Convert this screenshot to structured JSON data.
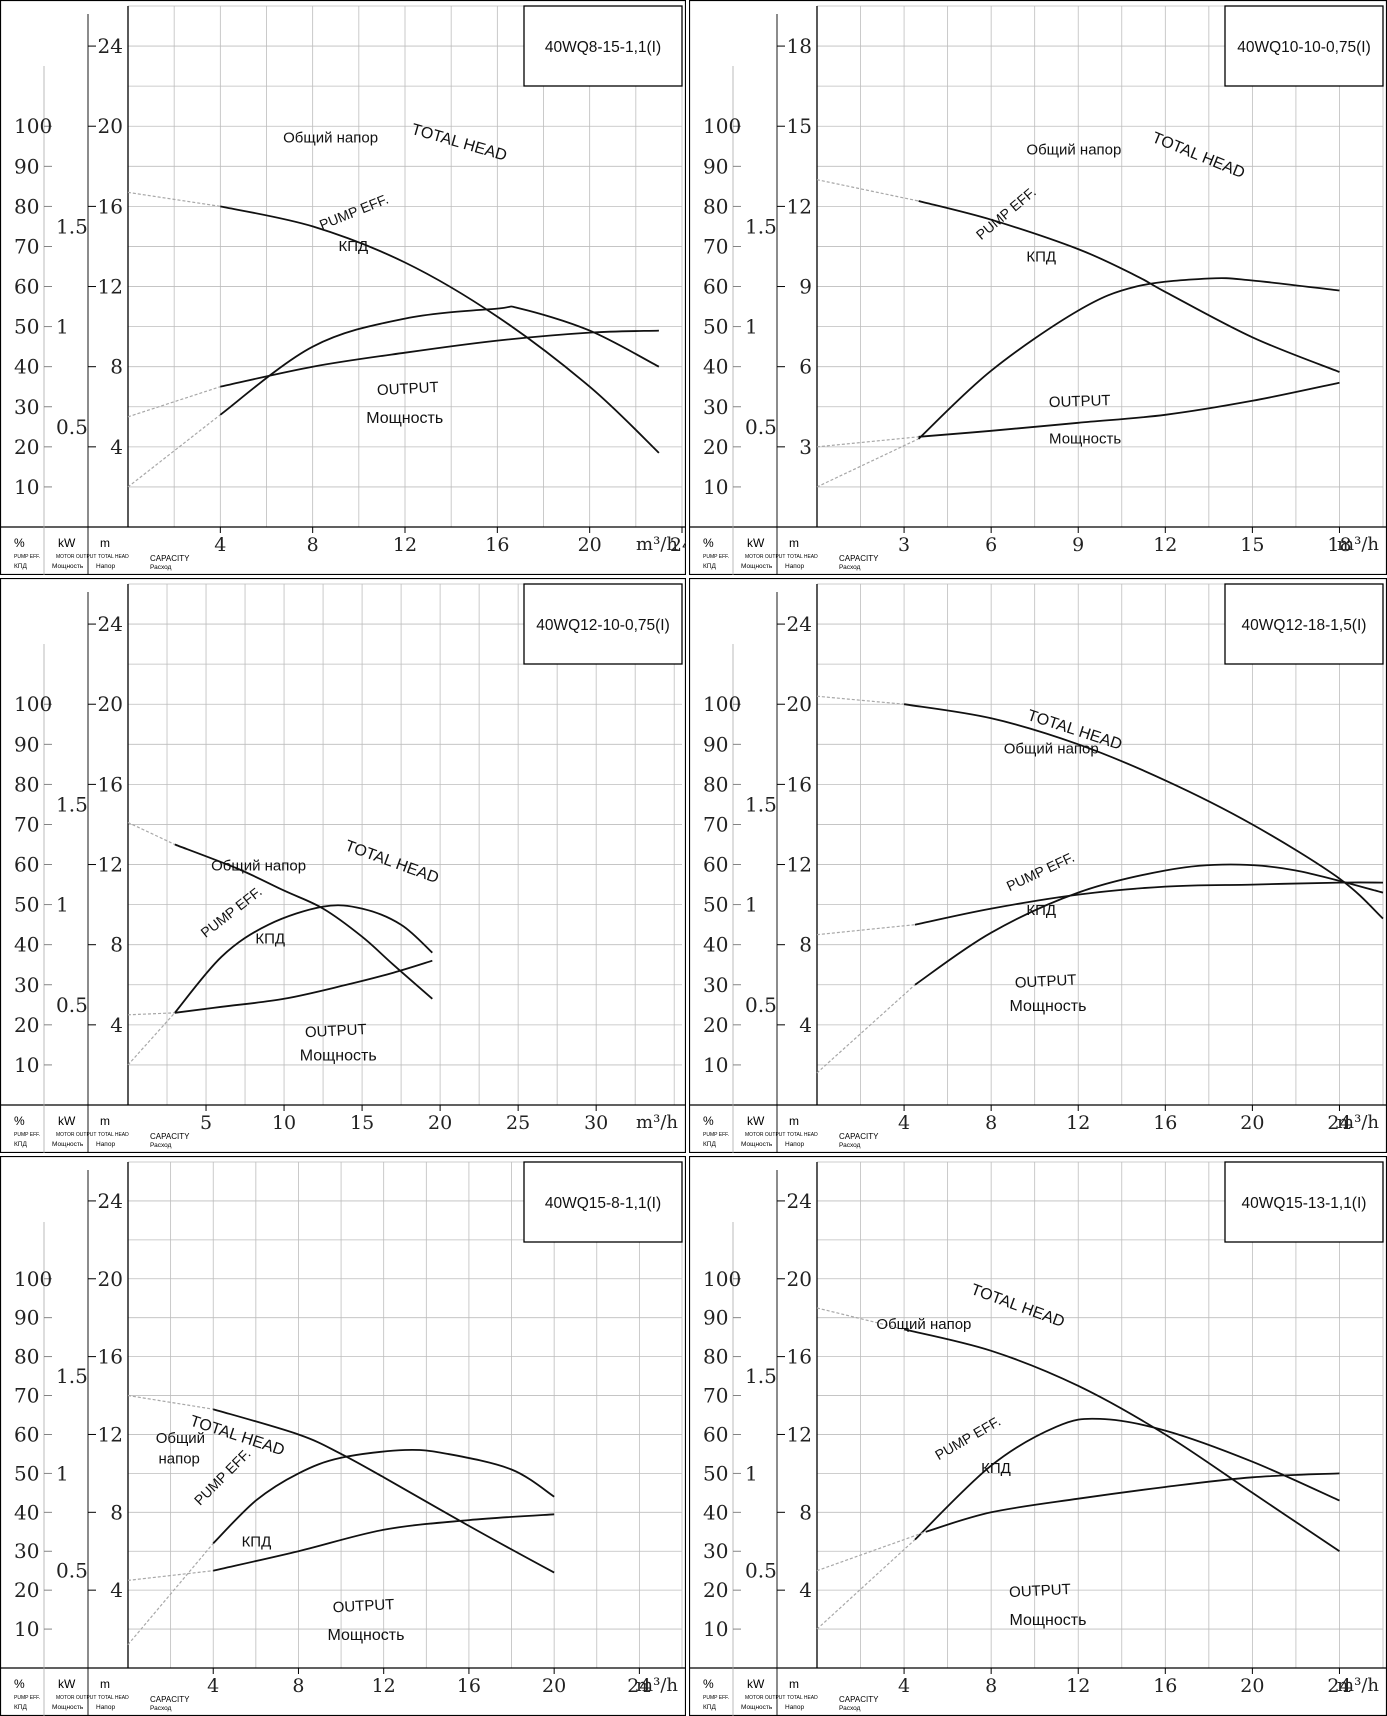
{
  "header_labels": {
    "pct": "%",
    "kw": "kW",
    "m": "m",
    "pump_eff": "PUMP EFF.",
    "kpd": "КПД",
    "motor_output": "MOTOR OUTPUT",
    "moshchnost": "Мощность",
    "total_head": "TOTAL HEAD",
    "napor": "Напор",
    "capacity": "CAPACITY",
    "raskhod": "Расход",
    "unit": "m³/h"
  },
  "chart_data": [
    {
      "type": "line",
      "title": "40WQ8-15-1,1(I)",
      "xlabel": "CAPACITY",
      "xlim": [
        0,
        24
      ],
      "x_ticks": [
        4,
        8,
        12,
        16,
        20,
        24
      ],
      "head_lim": [
        0,
        26
      ],
      "head_ticks": [
        4,
        8,
        12,
        16,
        20,
        24
      ],
      "eff_lim": [
        0,
        130
      ],
      "eff_ticks": [
        10,
        20,
        30,
        40,
        50,
        60,
        70,
        80,
        90,
        100
      ],
      "kw_lim": [
        0,
        2.6
      ],
      "kw_ticks": [
        "0.5",
        "1",
        "1.5"
      ],
      "series": [
        {
          "name": "TOTAL HEAD",
          "name_ru": "Общий напор",
          "axis": "head",
          "x": [
            0,
            4,
            8,
            12,
            16,
            20,
            23
          ],
          "y": [
            16.7,
            16.0,
            15.0,
            13.2,
            10.5,
            7.0,
            3.7
          ]
        },
        {
          "name": "PUMP EFF.",
          "name_ru": "КПД",
          "axis": "eff",
          "x": [
            0,
            4,
            8,
            12,
            16,
            17,
            20,
            23
          ],
          "y": [
            10,
            28,
            45,
            52,
            54.5,
            54.5,
            49,
            40
          ]
        },
        {
          "name": "OUTPUT",
          "name_ru": "Мощность",
          "axis": "kw",
          "x": [
            0,
            4,
            8,
            12,
            16,
            20,
            23
          ],
          "y": [
            0.55,
            0.7,
            0.8,
            0.87,
            0.93,
            0.97,
            0.98
          ]
        }
      ]
    },
    {
      "type": "line",
      "title": "40WQ10-10-0,75(I)",
      "xlabel": "CAPACITY",
      "xlim": [
        0,
        19.5
      ],
      "x_ticks": [
        3,
        6,
        9,
        12,
        15,
        18
      ],
      "head_lim": [
        0,
        19.5
      ],
      "head_ticks": [
        3,
        6,
        9,
        12,
        15,
        18
      ],
      "eff_lim": [
        0,
        130
      ],
      "eff_ticks": [
        10,
        20,
        30,
        40,
        50,
        60,
        70,
        80,
        90,
        100
      ],
      "kw_lim": [
        0,
        2.6
      ],
      "kw_ticks": [
        "0.5",
        "1",
        "1.5"
      ],
      "series": [
        {
          "name": "TOTAL HEAD",
          "name_ru": "Общий напор",
          "axis": "head",
          "x": [
            0,
            3.5,
            6,
            9,
            11,
            12,
            15,
            18
          ],
          "y": [
            13.0,
            12.2,
            11.5,
            10.4,
            9.4,
            8.8,
            7.1,
            5.8
          ]
        },
        {
          "name": "PUMP EFF.",
          "name_ru": "КПД",
          "axis": "eff",
          "x": [
            0,
            3.5,
            6,
            9,
            11,
            13.5,
            15,
            18
          ],
          "y": [
            10,
            22,
            39,
            54,
            60,
            62,
            61.5,
            59
          ]
        },
        {
          "name": "OUTPUT",
          "name_ru": "Мощность",
          "axis": "kw",
          "x": [
            0,
            3.5,
            6,
            9,
            12,
            15,
            18
          ],
          "y": [
            0.4,
            0.45,
            0.48,
            0.52,
            0.56,
            0.63,
            0.72
          ]
        }
      ]
    },
    {
      "type": "line",
      "title": "40WQ12-10-0,75(I)",
      "xlabel": "CAPACITY",
      "xlim": [
        0,
        35.5
      ],
      "x_ticks": [
        5,
        10,
        15,
        20,
        25,
        30
      ],
      "head_lim": [
        0,
        26
      ],
      "head_ticks": [
        4,
        8,
        12,
        16,
        20,
        24
      ],
      "eff_lim": [
        0,
        130
      ],
      "eff_ticks": [
        10,
        20,
        30,
        40,
        50,
        60,
        70,
        80,
        90,
        100
      ],
      "kw_lim": [
        0,
        2.6
      ],
      "kw_ticks": [
        "0.5",
        "1",
        "1.5"
      ],
      "series": [
        {
          "name": "TOTAL HEAD",
          "name_ru": "Общий напор",
          "axis": "head",
          "x": [
            0,
            3,
            7,
            10,
            12.5,
            15,
            17,
            19.5
          ],
          "y": [
            14.1,
            13.0,
            11.8,
            10.7,
            9.8,
            8.4,
            7.0,
            5.3
          ]
        },
        {
          "name": "PUMP EFF.",
          "name_ru": "КПД",
          "axis": "eff",
          "x": [
            0,
            3,
            6,
            9,
            12.5,
            15,
            17.5,
            19.5
          ],
          "y": [
            10,
            23,
            37,
            45,
            49.5,
            49,
            45,
            38
          ]
        },
        {
          "name": "OUTPUT",
          "name_ru": "Мощность",
          "axis": "kw",
          "x": [
            0,
            3,
            6,
            10,
            14,
            17,
            19.5
          ],
          "y": [
            0.45,
            0.46,
            0.49,
            0.53,
            0.6,
            0.66,
            0.72
          ]
        }
      ]
    },
    {
      "type": "line",
      "title": "40WQ12-18-1,5(I)",
      "xlabel": "CAPACITY",
      "xlim": [
        0,
        26
      ],
      "x_ticks": [
        4,
        8,
        12,
        16,
        20,
        24
      ],
      "head_lim": [
        0,
        26
      ],
      "head_ticks": [
        4,
        8,
        12,
        16,
        20,
        24
      ],
      "eff_lim": [
        0,
        130
      ],
      "eff_ticks": [
        10,
        20,
        30,
        40,
        50,
        60,
        70,
        80,
        90,
        100
      ],
      "kw_lim": [
        0,
        2.6
      ],
      "kw_ticks": [
        "0.5",
        "1",
        "1.5"
      ],
      "series": [
        {
          "name": "TOTAL HEAD",
          "name_ru": "Общий напор",
          "axis": "head",
          "x": [
            0,
            4,
            8,
            12,
            16,
            20,
            24,
            26
          ],
          "y": [
            20.4,
            20.0,
            19.3,
            18.0,
            16.2,
            14.0,
            11.3,
            9.3
          ]
        },
        {
          "name": "PUMP EFF.",
          "name_ru": "КПД",
          "axis": "eff",
          "x": [
            0,
            4.5,
            8,
            12,
            16,
            19,
            22,
            26
          ],
          "y": [
            8,
            30,
            43,
            53,
            58.5,
            60,
            58.5,
            53
          ]
        },
        {
          "name": "OUTPUT",
          "name_ru": "Мощность",
          "axis": "kw",
          "x": [
            0,
            4.5,
            8,
            12,
            16,
            20,
            24,
            26
          ],
          "y": [
            0.85,
            0.9,
            0.98,
            1.05,
            1.09,
            1.1,
            1.11,
            1.11
          ]
        }
      ]
    },
    {
      "type": "line",
      "title": "40WQ15-8-1,1(I)",
      "xlabel": "CAPACITY",
      "xlim": [
        0,
        26
      ],
      "x_ticks": [
        4,
        8,
        12,
        16,
        20,
        24
      ],
      "head_lim": [
        0,
        26
      ],
      "head_ticks": [
        4,
        8,
        12,
        16,
        20,
        24
      ],
      "eff_lim": [
        0,
        130
      ],
      "eff_ticks": [
        10,
        20,
        30,
        40,
        50,
        60,
        70,
        80,
        90,
        100
      ],
      "kw_lim": [
        0,
        2.6
      ],
      "kw_ticks": [
        "0.5",
        "1",
        "1.5"
      ],
      "series": [
        {
          "name": "TOTAL HEAD",
          "name_ru": "Общий напор",
          "axis": "head",
          "x": [
            0,
            4,
            8,
            10,
            12,
            16,
            20
          ],
          "y": [
            14.0,
            13.3,
            12.0,
            11.0,
            9.8,
            7.3,
            4.9
          ]
        },
        {
          "name": "PUMP EFF.",
          "name_ru": "КПД",
          "axis": "eff",
          "x": [
            0,
            4,
            6,
            8,
            10,
            13,
            15,
            18,
            20
          ],
          "y": [
            6,
            32,
            43,
            50,
            54,
            56,
            55,
            51,
            44
          ]
        },
        {
          "name": "OUTPUT",
          "name_ru": "Мощность",
          "axis": "kw",
          "x": [
            0,
            4,
            8,
            12,
            16,
            20
          ],
          "y": [
            0.45,
            0.5,
            0.6,
            0.71,
            0.76,
            0.79
          ]
        }
      ]
    },
    {
      "type": "line",
      "title": "40WQ15-13-1,1(I)",
      "xlabel": "CAPACITY",
      "xlim": [
        0,
        26
      ],
      "x_ticks": [
        4,
        8,
        12,
        16,
        20,
        24
      ],
      "head_lim": [
        0,
        26
      ],
      "head_ticks": [
        4,
        8,
        12,
        16,
        20,
        24
      ],
      "eff_lim": [
        0,
        130
      ],
      "eff_ticks": [
        10,
        20,
        30,
        40,
        50,
        60,
        70,
        80,
        90,
        100
      ],
      "kw_lim": [
        0,
        2.6
      ],
      "kw_ticks": [
        "0.5",
        "1",
        "1.5"
      ],
      "series": [
        {
          "name": "TOTAL HEAD",
          "name_ru": "Общий напор",
          "axis": "head",
          "x": [
            0,
            4,
            8,
            12,
            16,
            20,
            24
          ],
          "y": [
            18.5,
            17.4,
            16.3,
            14.5,
            12.0,
            9.0,
            6.0
          ]
        },
        {
          "name": "PUMP EFF.",
          "name_ru": "КПД",
          "axis": "eff",
          "x": [
            0,
            4.5,
            8,
            11,
            13,
            16,
            20,
            24
          ],
          "y": [
            10,
            33,
            52,
            62,
            64,
            61,
            53,
            43
          ]
        },
        {
          "name": "OUTPUT",
          "name_ru": "Мощность",
          "axis": "kw",
          "x": [
            0,
            5,
            8,
            12,
            16,
            20,
            24
          ],
          "y": [
            0.5,
            0.7,
            0.8,
            0.87,
            0.93,
            0.98,
            1.0
          ]
        }
      ]
    }
  ]
}
